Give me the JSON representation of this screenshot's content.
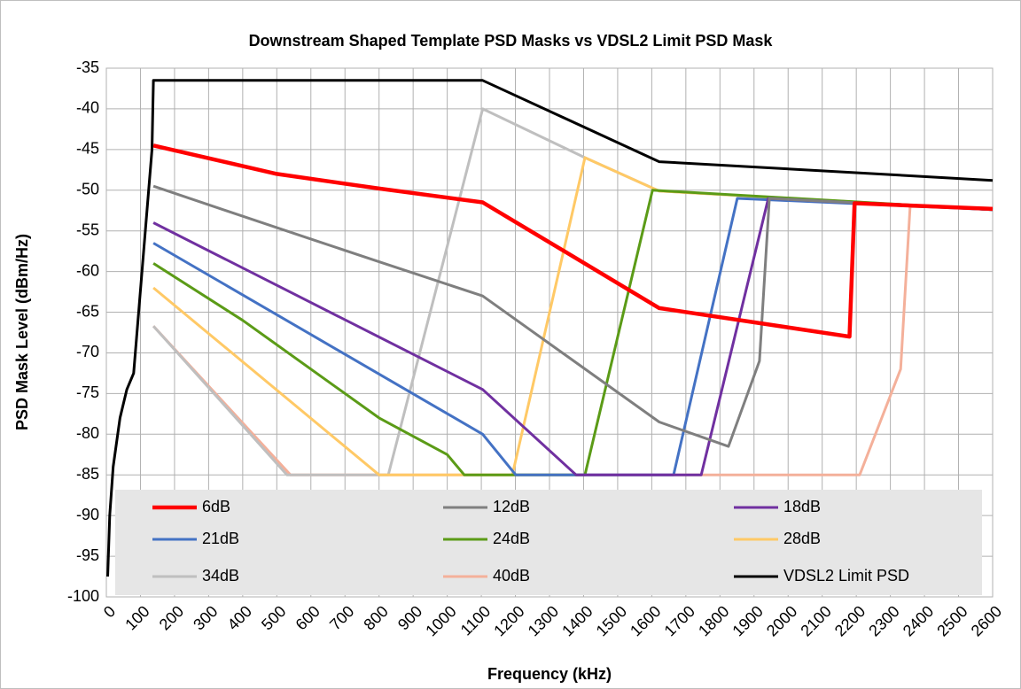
{
  "chart_data": {
    "type": "line",
    "title": "Downstream Shaped Template PSD Masks vs VDSL2 Limit PSD Mask",
    "x_label": "Frequency (kHz)",
    "y_label": "PSD Mask Level (dBm/Hz)",
    "xlim": [
      0,
      2600
    ],
    "ylim": [
      -100,
      -35
    ],
    "xticks": [
      0,
      100,
      200,
      300,
      400,
      500,
      600,
      700,
      800,
      900,
      1000,
      1100,
      1200,
      1300,
      1400,
      1500,
      1600,
      1700,
      1800,
      1900,
      2000,
      2100,
      2200,
      2300,
      2400,
      2500,
      2600
    ],
    "yticks": [
      -35,
      -40,
      -45,
      -50,
      -55,
      -60,
      -65,
      -70,
      -75,
      -80,
      -85,
      -90,
      -95,
      -100
    ],
    "grid": true,
    "legend": "bottom",
    "series": [
      {
        "name": "6dB",
        "color": "#ff0000",
        "x": [
          138,
          500,
          800,
          1104,
          1622,
          2180,
          2195,
          2600
        ],
        "values": [
          -44.5,
          -48,
          -49.8,
          -51.5,
          -64.5,
          -68,
          -51.6,
          -52.3
        ]
      },
      {
        "name": "12dB",
        "color": "#7f7f7f",
        "x": [
          138,
          350,
          600,
          800,
          1104,
          1622,
          1825,
          1916,
          1945,
          2600
        ],
        "values": [
          -49.5,
          -52.5,
          -56,
          -58.8,
          -63,
          -78.5,
          -81.5,
          -71,
          -51,
          -52.4
        ]
      },
      {
        "name": "18dB",
        "color": "#7030a0",
        "x": [
          138,
          1104,
          1378,
          1745,
          1942,
          2600
        ],
        "values": [
          -54,
          -74.5,
          -85,
          -85,
          -51,
          -52.4
        ]
      },
      {
        "name": "21dB",
        "color": "#4472c4",
        "x": [
          138,
          1104,
          1201,
          1664,
          1851,
          2600
        ],
        "values": [
          -56.5,
          -80,
          -85,
          -85,
          -51,
          -52.4
        ]
      },
      {
        "name": "24dB",
        "color": "#5b9b17",
        "x": [
          138,
          400,
          800,
          1000,
          1050,
          1404,
          1602,
          2600
        ],
        "values": [
          -59,
          -66,
          -78,
          -82.5,
          -85,
          -85,
          -50,
          -52.4
        ]
      },
      {
        "name": "28dB",
        "color": "#ffc966",
        "x": [
          138,
          800,
          1191,
          1404,
          1622,
          2600
        ],
        "values": [
          -62,
          -85,
          -85,
          -46,
          -50.1,
          -52.4
        ]
      },
      {
        "name": "34dB",
        "color": "#bfbfbf",
        "x": [
          138,
          530,
          827,
          1104,
          1404,
          1622,
          2600
        ],
        "values": [
          -66.7,
          -85,
          -85,
          -40,
          -46,
          -50.1,
          -52.4
        ]
      },
      {
        "name": "40dB",
        "color": "#f4b09a",
        "x": [
          138,
          540,
          2210,
          2330,
          2358,
          2600
        ],
        "values": [
          -66.7,
          -85,
          -85,
          -72,
          -52,
          -52.2
        ]
      },
      {
        "name": "VDSL2 Limit PSD",
        "color": "#000000",
        "x": [
          4,
          10,
          20,
          40,
          60,
          80,
          134,
          138,
          1104,
          1622,
          2600
        ],
        "values": [
          -97.5,
          -90,
          -84,
          -78,
          -74.5,
          -72.5,
          -45,
          -36.5,
          -36.5,
          -46.5,
          -48.8
        ]
      }
    ]
  }
}
